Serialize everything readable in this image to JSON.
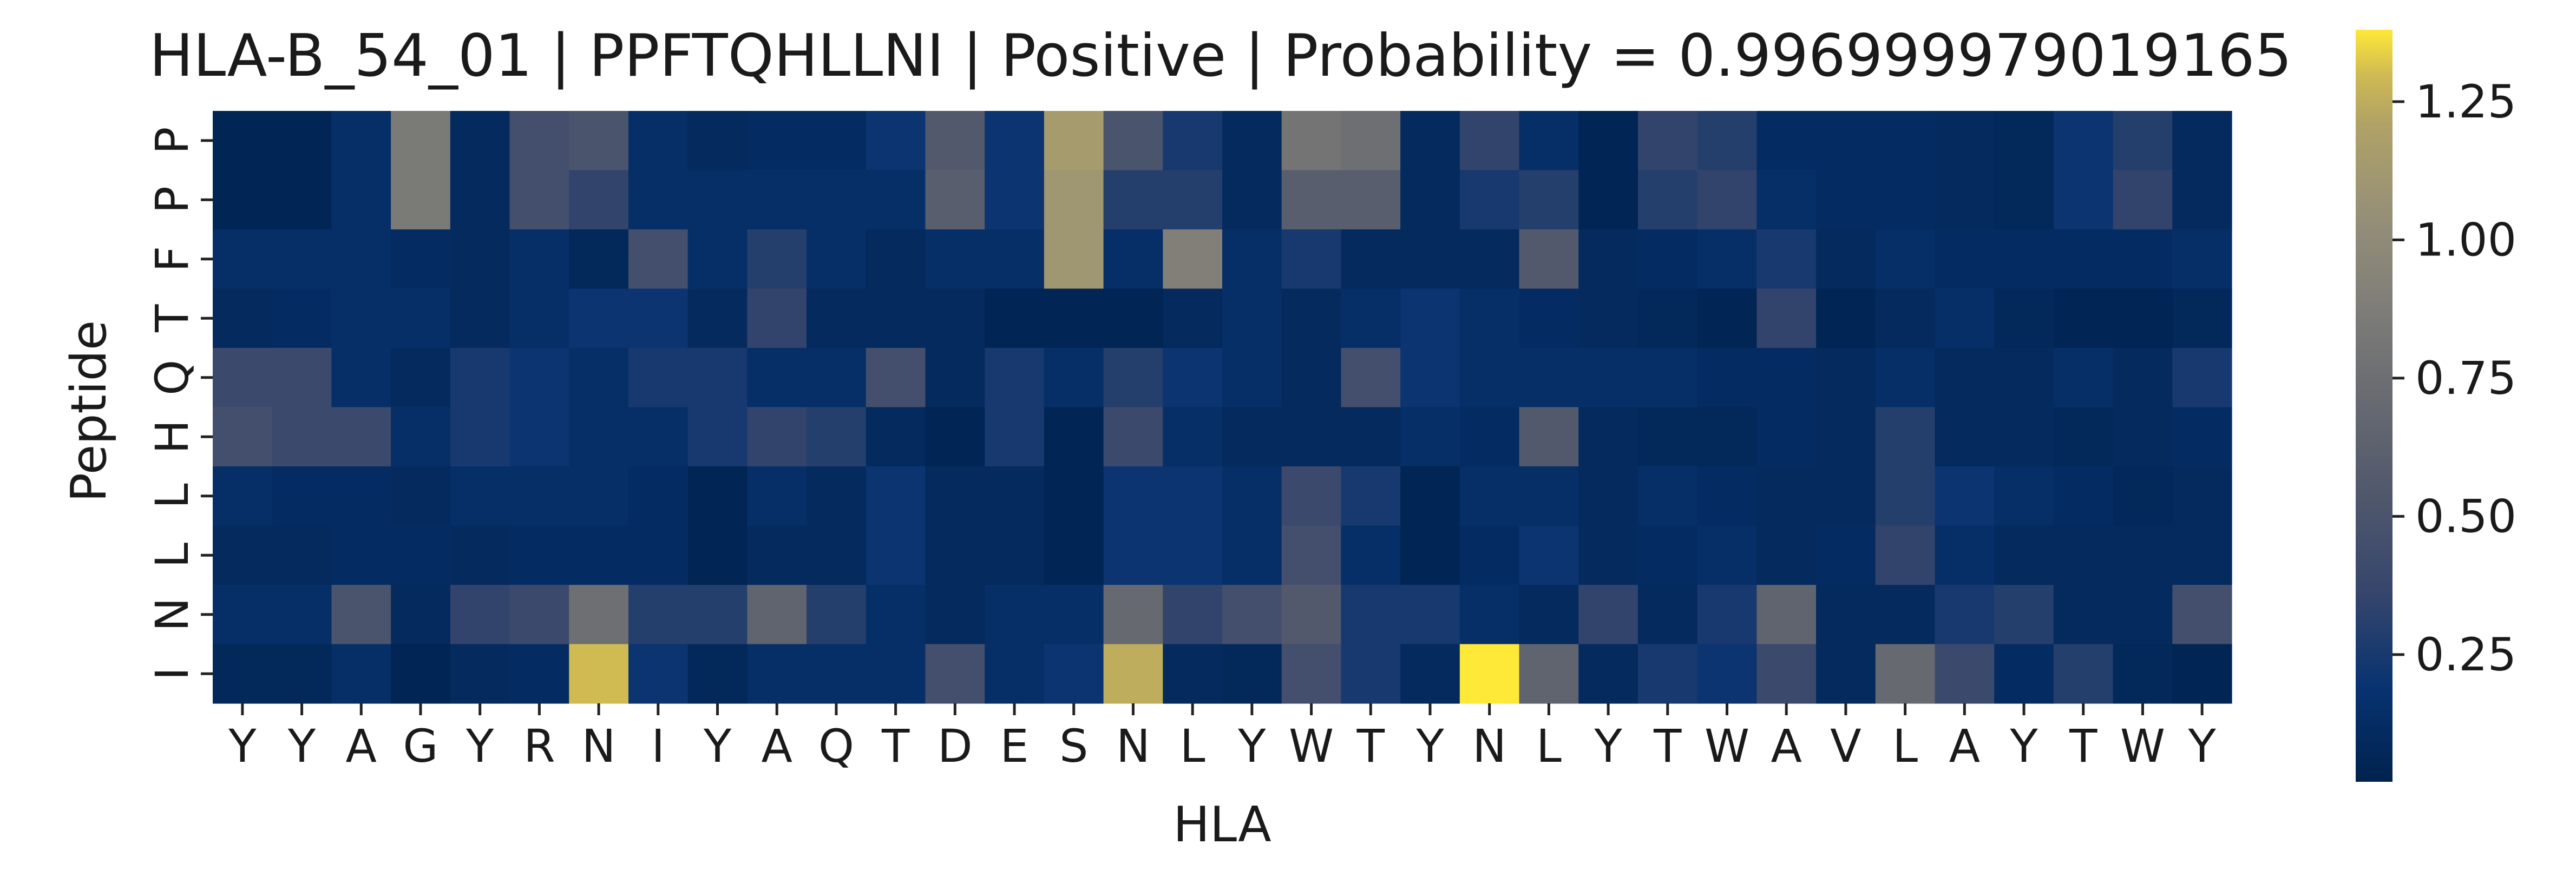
{
  "chart_data": {
    "type": "heatmap",
    "title": "HLA-B_54_01 | PPFTQHLLNI | Positive | Probability = 0.996999979019165",
    "xlabel": "HLA",
    "ylabel": "Peptide",
    "x_categories": [
      "Y",
      "Y",
      "A",
      "G",
      "Y",
      "R",
      "N",
      "I",
      "Y",
      "A",
      "Q",
      "T",
      "D",
      "E",
      "S",
      "N",
      "L",
      "Y",
      "W",
      "T",
      "Y",
      "N",
      "L",
      "Y",
      "T",
      "W",
      "A",
      "V",
      "L",
      "A",
      "Y",
      "T",
      "W",
      "Y"
    ],
    "y_categories": [
      "P",
      "P",
      "F",
      "T",
      "Q",
      "H",
      "L",
      "L",
      "N",
      "I"
    ],
    "colormap": "cividis",
    "vmin": 0.02,
    "vmax": 1.38,
    "colorbar_ticks": [
      "0.25",
      "0.50",
      "0.75",
      "1.00",
      "1.25"
    ],
    "colorbar_tick_values": [
      0.25,
      0.5,
      0.75,
      1.0,
      1.25
    ],
    "values": [
      [
        0.05,
        0.05,
        0.15,
        0.85,
        0.1,
        0.45,
        0.5,
        0.15,
        0.1,
        0.12,
        0.12,
        0.2,
        0.55,
        0.2,
        1.15,
        0.5,
        0.25,
        0.1,
        0.8,
        0.75,
        0.1,
        0.35,
        0.15,
        0.05,
        0.35,
        0.3,
        0.12,
        0.12,
        0.12,
        0.1,
        0.08,
        0.2,
        0.3,
        0.1
      ],
      [
        0.05,
        0.05,
        0.15,
        0.85,
        0.1,
        0.45,
        0.35,
        0.15,
        0.15,
        0.15,
        0.15,
        0.15,
        0.6,
        0.2,
        1.1,
        0.3,
        0.3,
        0.1,
        0.6,
        0.6,
        0.1,
        0.25,
        0.3,
        0.05,
        0.3,
        0.35,
        0.15,
        0.12,
        0.12,
        0.1,
        0.08,
        0.2,
        0.35,
        0.1
      ],
      [
        0.15,
        0.15,
        0.15,
        0.12,
        0.1,
        0.15,
        0.08,
        0.45,
        0.15,
        0.3,
        0.15,
        0.1,
        0.15,
        0.15,
        1.1,
        0.15,
        0.9,
        0.15,
        0.25,
        0.1,
        0.1,
        0.1,
        0.55,
        0.1,
        0.12,
        0.15,
        0.25,
        0.1,
        0.15,
        0.12,
        0.12,
        0.12,
        0.12,
        0.15
      ],
      [
        0.1,
        0.12,
        0.15,
        0.15,
        0.1,
        0.15,
        0.2,
        0.2,
        0.1,
        0.35,
        0.1,
        0.1,
        0.1,
        0.05,
        0.05,
        0.05,
        0.1,
        0.15,
        0.1,
        0.15,
        0.2,
        0.15,
        0.12,
        0.1,
        0.08,
        0.05,
        0.35,
        0.05,
        0.1,
        0.15,
        0.08,
        0.05,
        0.05,
        0.08
      ],
      [
        0.4,
        0.4,
        0.15,
        0.1,
        0.25,
        0.2,
        0.15,
        0.25,
        0.25,
        0.15,
        0.15,
        0.45,
        0.1,
        0.25,
        0.15,
        0.3,
        0.2,
        0.15,
        0.1,
        0.45,
        0.2,
        0.15,
        0.15,
        0.15,
        0.15,
        0.12,
        0.12,
        0.1,
        0.15,
        0.1,
        0.1,
        0.15,
        0.1,
        0.25
      ],
      [
        0.45,
        0.4,
        0.4,
        0.15,
        0.25,
        0.2,
        0.15,
        0.15,
        0.25,
        0.35,
        0.3,
        0.1,
        0.05,
        0.25,
        0.05,
        0.4,
        0.15,
        0.1,
        0.1,
        0.1,
        0.15,
        0.12,
        0.55,
        0.1,
        0.08,
        0.08,
        0.12,
        0.1,
        0.3,
        0.1,
        0.1,
        0.08,
        0.1,
        0.12
      ],
      [
        0.15,
        0.12,
        0.12,
        0.1,
        0.15,
        0.15,
        0.15,
        0.12,
        0.05,
        0.15,
        0.1,
        0.2,
        0.1,
        0.1,
        0.05,
        0.2,
        0.2,
        0.15,
        0.4,
        0.25,
        0.05,
        0.15,
        0.15,
        0.1,
        0.15,
        0.12,
        0.1,
        0.1,
        0.3,
        0.2,
        0.15,
        0.12,
        0.08,
        0.1
      ],
      [
        0.1,
        0.1,
        0.12,
        0.12,
        0.1,
        0.12,
        0.12,
        0.12,
        0.05,
        0.1,
        0.1,
        0.2,
        0.1,
        0.1,
        0.05,
        0.2,
        0.2,
        0.15,
        0.45,
        0.15,
        0.05,
        0.12,
        0.2,
        0.1,
        0.12,
        0.15,
        0.1,
        0.12,
        0.35,
        0.15,
        0.1,
        0.1,
        0.1,
        0.1
      ],
      [
        0.15,
        0.15,
        0.5,
        0.1,
        0.35,
        0.4,
        0.75,
        0.3,
        0.3,
        0.65,
        0.3,
        0.15,
        0.1,
        0.15,
        0.15,
        0.7,
        0.35,
        0.45,
        0.55,
        0.25,
        0.25,
        0.15,
        0.1,
        0.35,
        0.1,
        0.25,
        0.65,
        0.1,
        0.1,
        0.25,
        0.3,
        0.1,
        0.1,
        0.45
      ],
      [
        0.08,
        0.08,
        0.15,
        0.05,
        0.1,
        0.12,
        1.3,
        0.2,
        0.08,
        0.15,
        0.15,
        0.15,
        0.45,
        0.15,
        0.2,
        1.25,
        0.1,
        0.08,
        0.45,
        0.25,
        0.1,
        1.38,
        0.65,
        0.1,
        0.25,
        0.2,
        0.4,
        0.1,
        0.7,
        0.4,
        0.12,
        0.3,
        0.08,
        0.05
      ]
    ]
  }
}
